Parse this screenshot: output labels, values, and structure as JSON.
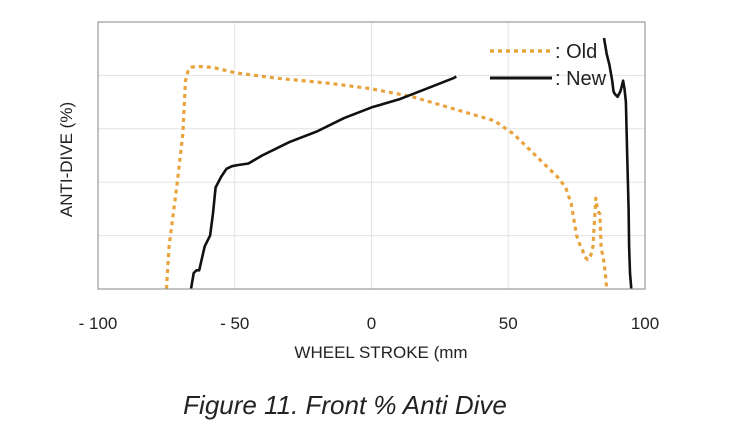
{
  "chart_data": {
    "type": "line",
    "title": "",
    "xlabel": "WHEEL STROKE (mm",
    "ylabel": "ANTI-DIVE (%)",
    "xlim": [
      -100,
      100
    ],
    "ylim": [
      0,
      5
    ],
    "x_ticks": [
      -100,
      -50,
      0,
      50,
      100
    ],
    "x_tick_labels": [
      "- 100",
      "- 50",
      "0",
      "50",
      "100"
    ],
    "grid": true,
    "legend_position": "top-right",
    "series": [
      {
        "name": ": Old",
        "color": "#e8a33c",
        "style": "dotted",
        "x": [
          -75,
          -74,
          -71,
          -69,
          -68,
          -67,
          -66,
          -64,
          -58,
          -50,
          -35,
          -15,
          0,
          15,
          25,
          35,
          45,
          52,
          56,
          60,
          64,
          68,
          71,
          73,
          74,
          75,
          76,
          77,
          78,
          79,
          80,
          81,
          82,
          82.5,
          83,
          83.5,
          84,
          84.5,
          85,
          85.5,
          86
        ],
        "y": [
          0,
          0.8,
          2.0,
          2.9,
          3.9,
          4.1,
          4.15,
          4.17,
          4.15,
          4.05,
          3.95,
          3.85,
          3.75,
          3.6,
          3.45,
          3.3,
          3.15,
          2.9,
          2.7,
          2.5,
          2.3,
          2.1,
          1.9,
          1.6,
          1.3,
          1.0,
          0.85,
          0.75,
          0.6,
          0.55,
          0.6,
          0.8,
          1.7,
          1.55,
          1.45,
          1.4,
          0.75,
          0.65,
          0.5,
          0.3,
          0
        ]
      },
      {
        "name": ": New",
        "color": "#111111",
        "style": "solid",
        "x": [
          -66,
          -65,
          -64,
          -63,
          -61,
          -59,
          -58,
          -57,
          -55,
          -53,
          -51,
          -49,
          -45,
          -40,
          -30,
          -20,
          -10,
          0,
          10,
          20,
          30,
          31,
          null,
          85,
          86,
          87,
          88,
          88.5,
          89,
          90,
          91,
          91.5,
          92,
          92.5,
          93,
          93.5,
          94,
          94.2,
          94.5,
          95
        ],
        "y": [
          0,
          0.3,
          0.35,
          0.35,
          0.8,
          1.0,
          1.4,
          1.9,
          2.1,
          2.25,
          2.3,
          2.32,
          2.35,
          2.5,
          2.75,
          2.95,
          3.2,
          3.4,
          3.55,
          3.75,
          3.95,
          3.98,
          null,
          4.7,
          4.4,
          4.2,
          3.9,
          3.7,
          3.65,
          3.6,
          3.7,
          3.8,
          3.9,
          3.75,
          3.5,
          2.5,
          1.5,
          0.8,
          0.3,
          0
        ]
      }
    ]
  },
  "caption": "Figure 11. Front % Anti Dive"
}
